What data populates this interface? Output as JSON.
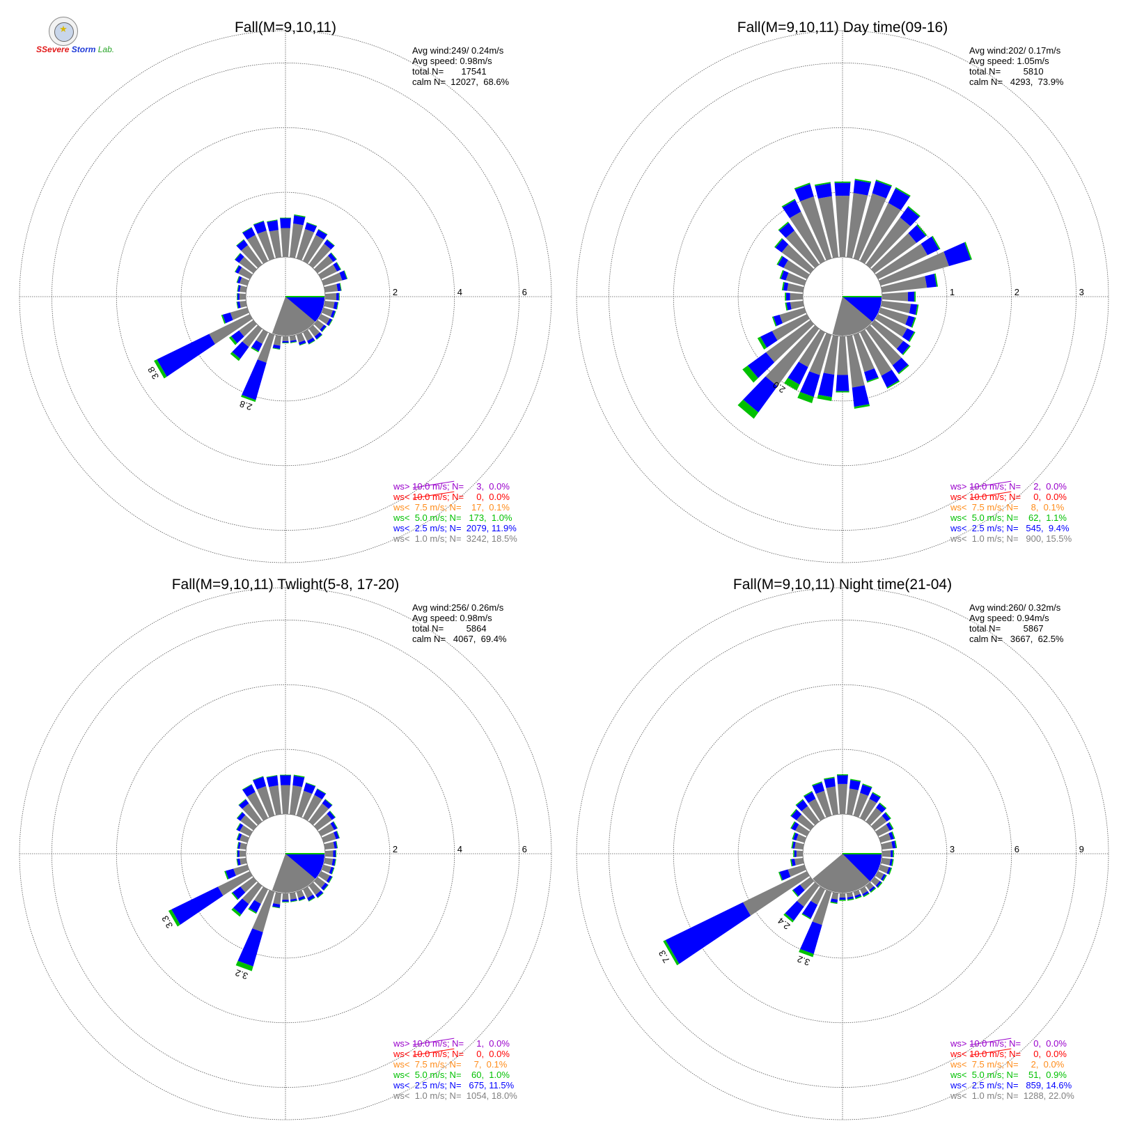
{
  "colors": {
    "ws_lt_1": "#808080",
    "ws_lt_2_5": "#0000ff",
    "ws_lt_5": "#00c000",
    "ws_lt_7_5": "#ff8c1a",
    "ws_lt_10": "#ff0000",
    "ws_gt_10": "#9900cc",
    "calm": "#808080",
    "grid": "#555555"
  },
  "logo": {
    "icon": "seal-icon",
    "text_1": "S",
    "text_2": "Severe",
    "text_3": "Storm",
    "text_4": "Lab."
  },
  "chart_data": [
    {
      "type": "wind-rose",
      "title": "Fall(M=9,10,11)",
      "rings": [
        2,
        4,
        6
      ],
      "ring_labels": [
        "2",
        "4",
        "6"
      ],
      "rmax": 7,
      "stats": [
        "Avg wind:249/ 0.24m/s",
        "Avg speed: 0.98m/s",
        "total N=       17541",
        "calm N=  12027,  68.6%"
      ],
      "legend": [
        {
          "text": "ws> 10.0 m/s; N=     3,  0.0%",
          "color": "#9900cc"
        },
        {
          "text": "ws< 10.0 m/s; N=     0,  0.0%",
          "color": "#ff0000"
        },
        {
          "text": "ws<  7.5 m/s; N=    17,  0.1%",
          "color": "#ff8c1a"
        },
        {
          "text": "ws<  5.0 m/s; N=   173,  1.0%",
          "color": "#00c000"
        },
        {
          "text": "ws<  2.5 m/s; N=  2079, 11.9%",
          "color": "#0000ff"
        },
        {
          "text": "ws<  1.0 m/s; N=  3242, 18.5%",
          "color": "#808080"
        }
      ],
      "calm_sector": {
        "gray_from": 90,
        "gray_to": 200,
        "blue_from": 90,
        "blue_to": 130
      },
      "bars": [
        [
          10,
          1.05,
          0.25,
          0.03
        ],
        [
          20,
          0.95,
          0.2,
          0.02
        ],
        [
          30,
          0.9,
          0.18,
          0.02
        ],
        [
          40,
          0.8,
          0.15,
          0.02
        ],
        [
          50,
          0.6,
          0.12,
          0.02
        ],
        [
          60,
          0.55,
          0.12,
          0.02
        ],
        [
          70,
          0.6,
          0.15,
          0.02
        ],
        [
          80,
          0.4,
          0.1,
          0.02
        ],
        [
          90,
          0.35,
          0.08,
          0.02
        ],
        [
          100,
          0.3,
          0.1,
          0.02
        ],
        [
          110,
          0.3,
          0.08,
          0.02
        ],
        [
          120,
          0.3,
          0.08,
          0.02
        ],
        [
          130,
          0.25,
          0.08,
          0.02
        ],
        [
          140,
          0.3,
          0.1,
          0.02
        ],
        [
          150,
          0.3,
          0.1,
          0.02
        ],
        [
          160,
          0.25,
          0.08,
          0.02
        ],
        [
          170,
          0.15,
          0.05,
          0.02
        ],
        [
          180,
          0.15,
          0.05,
          0.02
        ],
        [
          190,
          0.3,
          0.1,
          0.02
        ],
        [
          200,
          0.9,
          1.2,
          0.06
        ],
        [
          210,
          0.4,
          0.25,
          0.04
        ],
        [
          220,
          0.7,
          0.45,
          0.08
        ],
        [
          230,
          0.55,
          0.3,
          0.08
        ],
        [
          240,
          1.4,
          1.8,
          0.1
        ],
        [
          250,
          0.55,
          0.25,
          0.04
        ],
        [
          260,
          0.2,
          0.08,
          0.02
        ],
        [
          270,
          0.2,
          0.06,
          0.02
        ],
        [
          280,
          0.2,
          0.06,
          0.02
        ],
        [
          290,
          0.25,
          0.08,
          0.02
        ],
        [
          300,
          0.4,
          0.1,
          0.02
        ],
        [
          310,
          0.55,
          0.15,
          0.02
        ],
        [
          320,
          0.75,
          0.2,
          0.02
        ],
        [
          330,
          0.9,
          0.25,
          0.02
        ],
        [
          340,
          0.9,
          0.3,
          0.02
        ],
        [
          350,
          0.85,
          0.3,
          0.02
        ],
        [
          360,
          0.9,
          0.3,
          0.02
        ]
      ],
      "bar_labels": [
        {
          "dir": 240,
          "text": "3.8"
        },
        {
          "dir": 200,
          "text": "2.8"
        }
      ]
    },
    {
      "type": "wind-rose",
      "title": "Fall(M=9,10,11) Day time(09-16)",
      "rings": [
        1,
        2,
        3
      ],
      "ring_labels": [
        "1",
        "2",
        "3"
      ],
      "rmax": 3.5,
      "stats": [
        "Avg wind:202/ 0.17m/s",
        "Avg speed: 1.05m/s",
        "total N=         5810",
        "calm N=   4293,  73.9%"
      ],
      "legend": [
        {
          "text": "ws> 10.0 m/s; N=     2,  0.0%",
          "color": "#9900cc"
        },
        {
          "text": "ws< 10.0 m/s; N=     0,  0.0%",
          "color": "#ff0000"
        },
        {
          "text": "ws<  7.5 m/s; N=     8,  0.1%",
          "color": "#ff8c1a"
        },
        {
          "text": "ws<  5.0 m/s; N=    62,  1.1%",
          "color": "#00c000"
        },
        {
          "text": "ws<  2.5 m/s; N=   545,  9.4%",
          "color": "#0000ff"
        },
        {
          "text": "ws<  1.0 m/s; N=   900, 15.5%",
          "color": "#808080"
        }
      ],
      "calm_sector": {
        "gray_from": 90,
        "gray_to": 195,
        "blue_from": 90,
        "blue_to": 130
      },
      "bars": [
        [
          10,
          1.0,
          0.2,
          0.02
        ],
        [
          20,
          1.05,
          0.2,
          0.02
        ],
        [
          30,
          1.0,
          0.25,
          0.02
        ],
        [
          40,
          0.9,
          0.2,
          0.02
        ],
        [
          50,
          0.8,
          0.18,
          0.02
        ],
        [
          60,
          0.85,
          0.2,
          0.02
        ],
        [
          70,
          1.1,
          0.35,
          0.02
        ],
        [
          80,
          0.7,
          0.15,
          0.02
        ],
        [
          90,
          0.4,
          0.1,
          0.02
        ],
        [
          100,
          0.45,
          0.1,
          0.02
        ],
        [
          110,
          0.45,
          0.1,
          0.02
        ],
        [
          120,
          0.5,
          0.12,
          0.02
        ],
        [
          130,
          0.55,
          0.12,
          0.02
        ],
        [
          140,
          0.7,
          0.15,
          0.02
        ],
        [
          150,
          0.75,
          0.2,
          0.02
        ],
        [
          160,
          0.6,
          0.15,
          0.02
        ],
        [
          170,
          0.8,
          0.3,
          0.03
        ],
        [
          180,
          0.6,
          0.25,
          0.02
        ],
        [
          190,
          0.6,
          0.35,
          0.06
        ],
        [
          200,
          0.65,
          0.35,
          0.1
        ],
        [
          210,
          0.6,
          0.3,
          0.1
        ],
        [
          220,
          1.1,
          0.5,
          0.12
        ],
        [
          230,
          0.85,
          0.35,
          0.1
        ],
        [
          240,
          0.6,
          0.2,
          0.05
        ],
        [
          250,
          0.4,
          0.1,
          0.02
        ],
        [
          260,
          0.2,
          0.06,
          0.02
        ],
        [
          270,
          0.2,
          0.06,
          0.02
        ],
        [
          280,
          0.25,
          0.06,
          0.02
        ],
        [
          290,
          0.3,
          0.08,
          0.02
        ],
        [
          300,
          0.4,
          0.1,
          0.02
        ],
        [
          310,
          0.55,
          0.12,
          0.02
        ],
        [
          320,
          0.65,
          0.15,
          0.02
        ],
        [
          330,
          0.85,
          0.2,
          0.02
        ],
        [
          340,
          1.0,
          0.2,
          0.02
        ],
        [
          350,
          0.95,
          0.2,
          0.02
        ],
        [
          360,
          0.95,
          0.2,
          0.02
        ]
      ],
      "bar_labels": [
        {
          "dir": 215,
          "text": "2.0"
        }
      ]
    },
    {
      "type": "wind-rose",
      "title": "Fall(M=9,10,11) Twlight(5-8, 17-20)",
      "rings": [
        2,
        4,
        6
      ],
      "ring_labels": [
        "2",
        "4",
        "6"
      ],
      "rmax": 7,
      "stats": [
        "Avg wind:256/ 0.26m/s",
        "Avg speed: 0.98m/s",
        "total N=         5864",
        "calm N=   4067,  69.4%"
      ],
      "legend": [
        {
          "text": "ws> 10.0 m/s; N=     1,  0.0%",
          "color": "#9900cc"
        },
        {
          "text": "ws< 10.0 m/s; N=     0,  0.0%",
          "color": "#ff0000"
        },
        {
          "text": "ws<  7.5 m/s; N=     7,  0.1%",
          "color": "#ff8c1a"
        },
        {
          "text": "ws<  5.0 m/s; N=    60,  1.0%",
          "color": "#00c000"
        },
        {
          "text": "ws<  2.5 m/s; N=   675, 11.5%",
          "color": "#0000ff"
        },
        {
          "text": "ws<  1.0 m/s; N=  1054, 18.0%",
          "color": "#808080"
        }
      ],
      "calm_sector": {
        "gray_from": 90,
        "gray_to": 200,
        "blue_from": 90,
        "blue_to": 130
      },
      "bars": [
        [
          10,
          0.9,
          0.3,
          0.03
        ],
        [
          20,
          0.8,
          0.25,
          0.02
        ],
        [
          30,
          0.8,
          0.2,
          0.02
        ],
        [
          40,
          0.7,
          0.15,
          0.02
        ],
        [
          50,
          0.55,
          0.12,
          0.02
        ],
        [
          60,
          0.45,
          0.1,
          0.02
        ],
        [
          70,
          0.4,
          0.1,
          0.02
        ],
        [
          80,
          0.3,
          0.08,
          0.02
        ],
        [
          90,
          0.25,
          0.08,
          0.02
        ],
        [
          100,
          0.25,
          0.08,
          0.02
        ],
        [
          110,
          0.25,
          0.08,
          0.02
        ],
        [
          120,
          0.3,
          0.08,
          0.02
        ],
        [
          130,
          0.3,
          0.1,
          0.02
        ],
        [
          140,
          0.35,
          0.1,
          0.02
        ],
        [
          150,
          0.3,
          0.1,
          0.02
        ],
        [
          160,
          0.2,
          0.08,
          0.02
        ],
        [
          170,
          0.2,
          0.06,
          0.02
        ],
        [
          180,
          0.2,
          0.06,
          0.02
        ],
        [
          190,
          0.35,
          0.1,
          0.02
        ],
        [
          200,
          1.3,
          1.1,
          0.15
        ],
        [
          210,
          0.5,
          0.3,
          0.04
        ],
        [
          220,
          0.7,
          0.4,
          0.08
        ],
        [
          230,
          0.5,
          0.3,
          0.04
        ],
        [
          240,
          1.1,
          1.6,
          0.1
        ],
        [
          250,
          0.45,
          0.25,
          0.04
        ],
        [
          260,
          0.2,
          0.08,
          0.02
        ],
        [
          270,
          0.2,
          0.06,
          0.02
        ],
        [
          280,
          0.2,
          0.06,
          0.02
        ],
        [
          290,
          0.25,
          0.08,
          0.02
        ],
        [
          300,
          0.35,
          0.1,
          0.02
        ],
        [
          310,
          0.5,
          0.12,
          0.02
        ],
        [
          320,
          0.7,
          0.15,
          0.02
        ],
        [
          330,
          0.9,
          0.25,
          0.02
        ],
        [
          340,
          0.95,
          0.3,
          0.02
        ],
        [
          350,
          0.9,
          0.3,
          0.02
        ],
        [
          360,
          0.9,
          0.3,
          0.02
        ]
      ],
      "bar_labels": [
        {
          "dir": 240,
          "text": "3.3"
        },
        {
          "dir": 200,
          "text": "3.2"
        }
      ]
    },
    {
      "type": "wind-rose",
      "title": "Fall(M=9,10,11) Night time(21-04)",
      "rings": [
        3,
        6,
        9
      ],
      "ring_labels": [
        "3",
        "6",
        "9"
      ],
      "rmax": 10.5,
      "stats": [
        "Avg wind:260/ 0.32m/s",
        "Avg speed: 0.94m/s",
        "total N=         5867",
        "calm N=   3667,  62.5%"
      ],
      "legend": [
        {
          "text": "ws> 10.0 m/s; N=     0,  0.0%",
          "color": "#9900cc"
        },
        {
          "text": "ws< 10.0 m/s; N=     0,  0.0%",
          "color": "#ff0000"
        },
        {
          "text": "ws<  7.5 m/s; N=     2,  0.0%",
          "color": "#ff8c1a"
        },
        {
          "text": "ws<  5.0 m/s; N=    51,  0.9%",
          "color": "#00c000"
        },
        {
          "text": "ws<  2.5 m/s; N=   859, 14.6%",
          "color": "#0000ff"
        },
        {
          "text": "ws<  1.0 m/s; N=  1288, 22.0%",
          "color": "#808080"
        }
      ],
      "calm_sector": {
        "gray_from": 90,
        "gray_to": 230,
        "blue_from": 90,
        "blue_to": 135
      },
      "bars": [
        [
          10,
          1.2,
          0.4,
          0.05
        ],
        [
          20,
          1.1,
          0.4,
          0.05
        ],
        [
          30,
          1.0,
          0.3,
          0.05
        ],
        [
          40,
          0.8,
          0.25,
          0.05
        ],
        [
          50,
          0.7,
          0.2,
          0.05
        ],
        [
          60,
          0.6,
          0.15,
          0.05
        ],
        [
          70,
          0.5,
          0.15,
          0.05
        ],
        [
          80,
          0.5,
          0.15,
          0.05
        ],
        [
          90,
          0.4,
          0.1,
          0.05
        ],
        [
          100,
          0.4,
          0.1,
          0.05
        ],
        [
          110,
          0.4,
          0.1,
          0.05
        ],
        [
          120,
          0.3,
          0.1,
          0.05
        ],
        [
          130,
          0.3,
          0.1,
          0.05
        ],
        [
          140,
          0.25,
          0.1,
          0.05
        ],
        [
          150,
          0.25,
          0.1,
          0.05
        ],
        [
          160,
          0.2,
          0.1,
          0.05
        ],
        [
          170,
          0.2,
          0.1,
          0.05
        ],
        [
          180,
          0.2,
          0.1,
          0.05
        ],
        [
          190,
          0.3,
          0.15,
          0.05
        ],
        [
          200,
          1.6,
          1.4,
          0.15
        ],
        [
          210,
          0.8,
          0.7,
          0.05
        ],
        [
          220,
          1.2,
          0.8,
          0.1
        ],
        [
          230,
          0.6,
          0.4,
          0.05
        ],
        [
          240,
          3.3,
          4.0,
          0.12
        ],
        [
          250,
          0.8,
          0.4,
          0.05
        ],
        [
          260,
          0.4,
          0.15,
          0.05
        ],
        [
          270,
          0.3,
          0.1,
          0.05
        ],
        [
          280,
          0.4,
          0.1,
          0.05
        ],
        [
          290,
          0.4,
          0.15,
          0.05
        ],
        [
          300,
          0.6,
          0.2,
          0.05
        ],
        [
          310,
          0.8,
          0.3,
          0.05
        ],
        [
          320,
          0.9,
          0.35,
          0.05
        ],
        [
          330,
          1.0,
          0.35,
          0.05
        ],
        [
          340,
          1.2,
          0.4,
          0.05
        ],
        [
          350,
          1.3,
          0.4,
          0.05
        ],
        [
          360,
          1.4,
          0.4,
          0.05
        ]
      ],
      "bar_labels": [
        {
          "dir": 240,
          "text": "7.3"
        },
        {
          "dir": 220,
          "text": "2.4"
        },
        {
          "dir": 200,
          "text": "3.2"
        }
      ]
    }
  ]
}
